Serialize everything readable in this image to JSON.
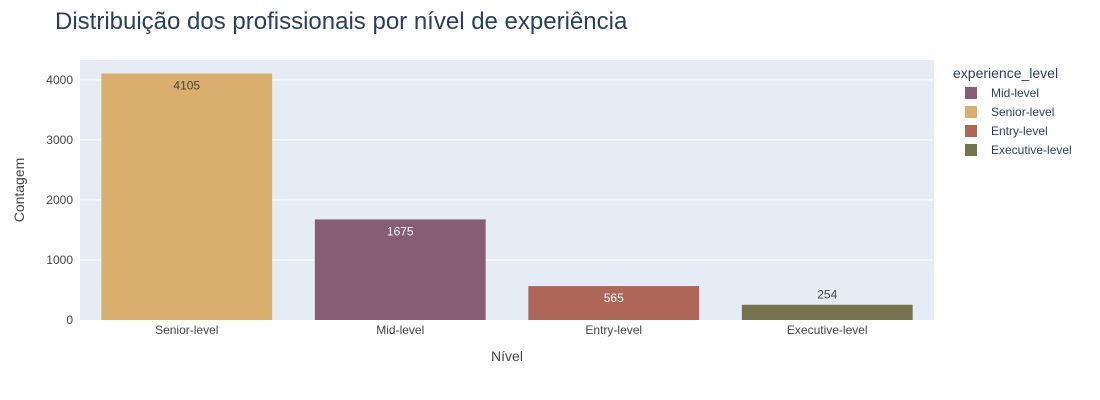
{
  "chart_data": {
    "type": "bar",
    "title": "Distribuição dos profissionais por nível de experiência",
    "xlabel": "Nível",
    "ylabel": "Contagem",
    "categories": [
      "Senior-level",
      "Mid-level",
      "Entry-level",
      "Executive-level"
    ],
    "values": [
      4105,
      1675,
      565,
      254
    ],
    "bar_colors": [
      "#daae6c",
      "#865c77",
      "#ad6657",
      "#76724b"
    ],
    "label_colors": [
      "#444444",
      "#ffffff",
      "#ffffff",
      "#444444"
    ],
    "ylim": [
      0,
      4330
    ],
    "yticks": [
      0,
      1000,
      2000,
      3000,
      4000
    ],
    "grid": true,
    "legend": {
      "title": "experience_level",
      "position": "right",
      "entries": [
        {
          "label": "Mid-level",
          "color": "#865c77"
        },
        {
          "label": "Senior-level",
          "color": "#daae6c"
        },
        {
          "label": "Entry-level",
          "color": "#ad6657"
        },
        {
          "label": "Executive-level",
          "color": "#76724b"
        }
      ]
    },
    "plot_background": "#e5ecf6"
  }
}
